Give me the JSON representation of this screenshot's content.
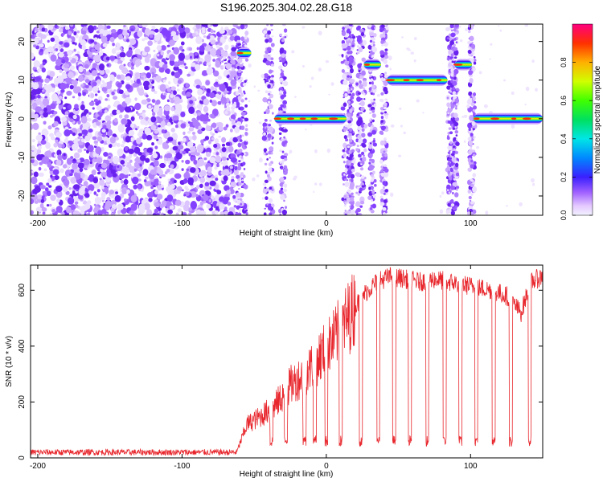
{
  "title": "S196.2025.304.02.28.G18",
  "chart_data": [
    {
      "type": "heatmap",
      "xlabel": "Height of straight line (km)",
      "ylabel": "Frequency (Hz)",
      "xlim": [
        -205,
        150
      ],
      "ylim": [
        -25,
        24.5
      ],
      "xticks": [
        -200,
        -100,
        0,
        100
      ],
      "yticks": [
        -20,
        -10,
        0,
        10,
        20
      ],
      "grid": false,
      "colorbar": {
        "label": "Normalized spectral amplitude",
        "range": [
          0,
          1
        ],
        "ticks": [
          0.0,
          0.2,
          0.4,
          0.6,
          0.8
        ]
      },
      "signal_segments": [
        {
          "x": [
            -62,
            -52
          ],
          "freq": 17
        },
        {
          "x": [
            -36,
            14
          ],
          "freq": 0
        },
        {
          "x": [
            26,
            38
          ],
          "freq": 14
        },
        {
          "x": [
            42,
            84
          ],
          "freq": 10
        },
        {
          "x": [
            89,
            101
          ],
          "freq": 14
        },
        {
          "x": [
            102,
            150
          ],
          "freq": 0
        }
      ],
      "noise_region": [
        -205,
        -60
      ]
    },
    {
      "type": "line",
      "xlabel": "Height of straight line (km)",
      "ylabel": "SNR (10 * v/v)",
      "xlim": [
        -205,
        150
      ],
      "ylim": [
        0,
        690
      ],
      "xticks": [
        -200,
        -100,
        0,
        100
      ],
      "yticks": [
        0,
        200,
        400,
        600
      ],
      "grid": false,
      "color": "#e8272d",
      "series": [
        {
          "x": [
            -205,
            -150,
            -100,
            -62,
            -55,
            -45,
            -35,
            -25,
            -15,
            -5,
            5,
            15,
            25,
            35,
            45,
            55,
            65,
            75,
            85,
            95,
            105,
            115,
            125,
            135,
            142,
            150
          ],
          "values": [
            20,
            20,
            20,
            22,
            120,
            150,
            190,
            260,
            300,
            360,
            420,
            500,
            580,
            630,
            650,
            640,
            630,
            640,
            630,
            620,
            610,
            600,
            580,
            520,
            630,
            650
          ]
        }
      ],
      "dropouts": [
        -38,
        -28,
        -15,
        -8,
        0,
        10,
        24,
        36,
        47,
        58,
        70,
        82,
        93,
        104,
        116,
        128,
        141
      ],
      "dropout_level": 60
    }
  ]
}
